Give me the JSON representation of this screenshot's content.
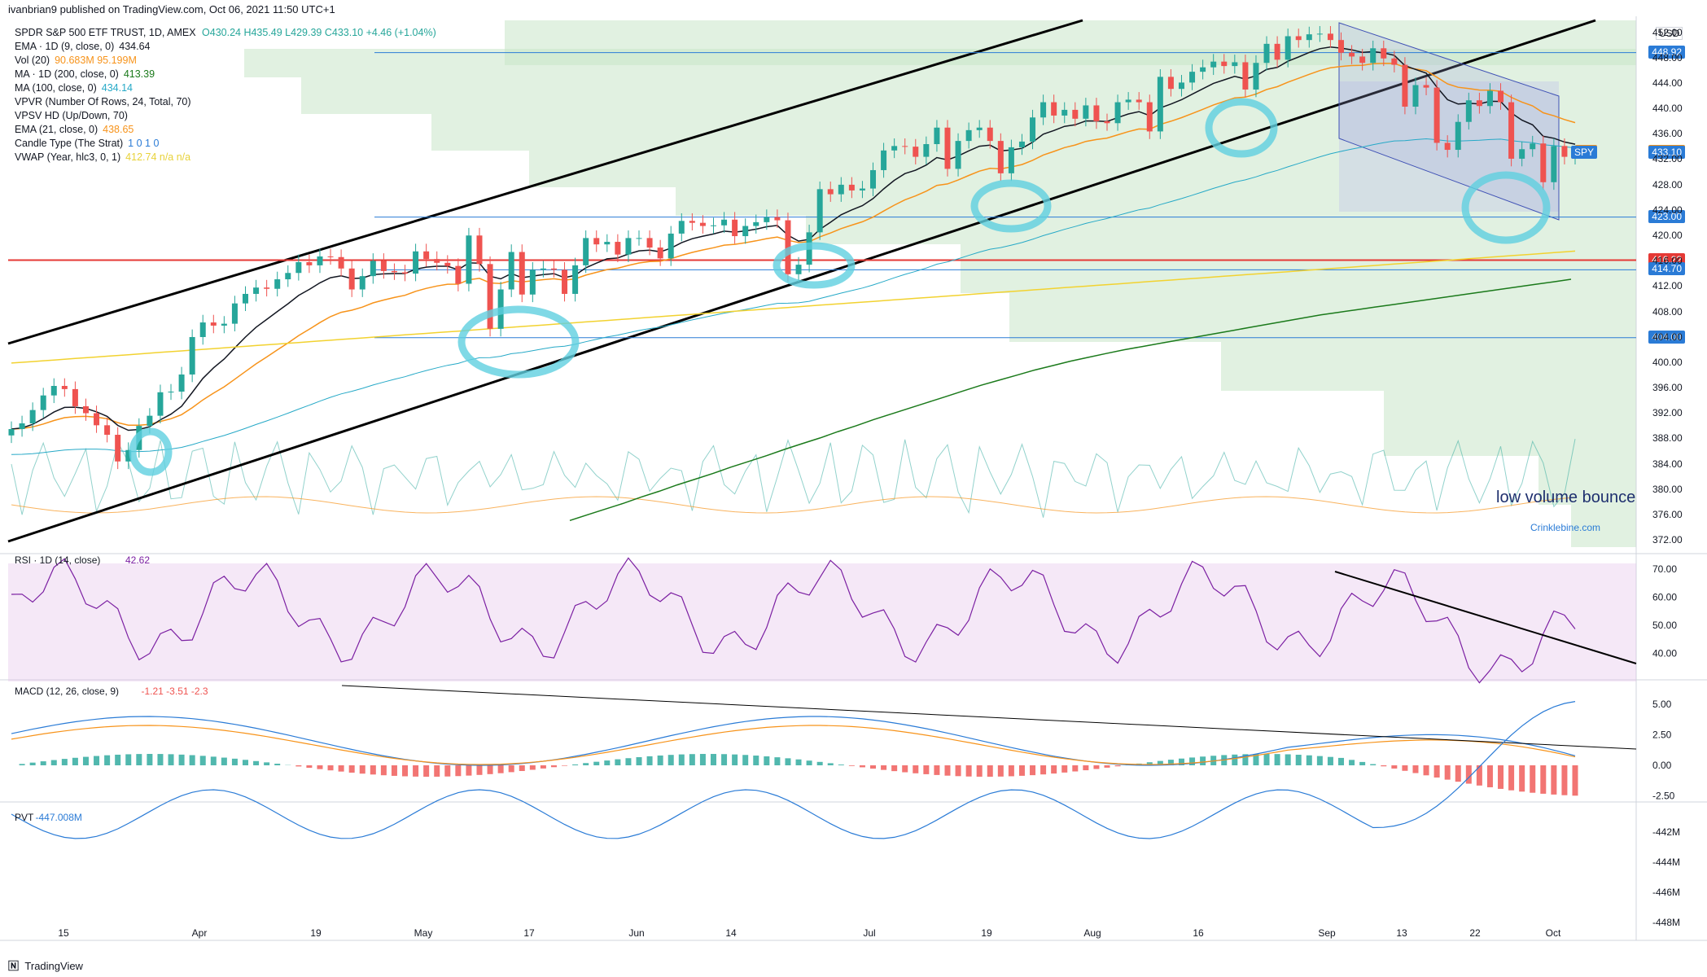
{
  "header": {
    "publisher": "ivanbrian9 published on TradingView.com, Oct 06, 2021 11:50 UTC+1",
    "symbol_line": "SPDR S&P 500 ETF TRUST, 1D, AMEX",
    "ohlc": "O430.24 H435.49 L429.39 C433.10 +4.46 (+1.04%)",
    "currency": "USD"
  },
  "legend": [
    {
      "label": "EMA · 1D (9, close, 0)",
      "value": "434.64",
      "color": "#131722"
    },
    {
      "label": "Vol (20)",
      "value": "90.683M  95.199M",
      "color": "#f7931a"
    },
    {
      "label": "MA · 1D (200, close, 0)",
      "value": "413.39",
      "color": "#1b7a1b"
    },
    {
      "label": "MA (100, close, 0)",
      "value": "434.14",
      "color": "#26a9c7"
    },
    {
      "label": "VPVR (Number Of Rows, 24, Total, 70)",
      "value": "",
      "color": "#131722"
    },
    {
      "label": "VPSV HD (Up/Down, 70)",
      "value": "",
      "color": "#131722"
    },
    {
      "label": "EMA (21, close, 0)",
      "value": "438.65",
      "color": "#f7931a"
    },
    {
      "label": "Candle Type (The Strat)",
      "value": "1 0 1 0",
      "color": "#2a7bd6"
    },
    {
      "label": "VWAP (Year, hlc3, 0, 1)",
      "value": "412.74  n/a  n/a",
      "color": "#e8d23a"
    }
  ],
  "price_labels": [
    {
      "text": "448.92",
      "value": 448.92,
      "color": "#2a7bd6"
    },
    {
      "text": "433.25",
      "value": 433.25,
      "color": "#f7931a",
      "prefix": "Pre"
    },
    {
      "text": "433.10",
      "value": 433.1,
      "color": "#2a7bd6",
      "prefix": "SPY"
    },
    {
      "text": "423.00",
      "value": 423.0,
      "color": "#2a7bd6"
    },
    {
      "text": "416.22",
      "value": 416.22,
      "color": "#e53935"
    },
    {
      "text": "414.70",
      "value": 414.7,
      "color": "#2a7bd6"
    },
    {
      "text": "404.00",
      "value": 404.0,
      "color": "#2a7bd6"
    }
  ],
  "annotations": {
    "low_volume": "low volume bounce",
    "watermark": "Crinklebine.com"
  },
  "footer": "TradingView",
  "chart_data": [
    {
      "type": "line",
      "title": "SPY 1D",
      "x_ticks": [
        "15",
        "Apr",
        "19",
        "May",
        "17",
        "Jun",
        "14",
        "Jul",
        "19",
        "Aug",
        "16",
        "Sep",
        "13",
        "22",
        "Oct"
      ],
      "y_ticks": [
        372,
        376,
        380,
        384,
        388,
        392,
        396,
        400,
        404,
        408,
        412,
        416,
        420,
        424,
        428,
        432,
        436,
        440,
        444,
        448,
        452
      ],
      "ylim": [
        371,
        454
      ],
      "close": [
        389.6,
        390.5,
        392.6,
        394.9,
        396.4,
        395.9,
        393.2,
        392.1,
        390.2,
        388.7,
        384.5,
        386.3,
        390.1,
        391.7,
        395.4,
        395.5,
        398.2,
        404.1,
        406.4,
        405.9,
        406.2,
        409.4,
        410.9,
        411.9,
        411.7,
        413.2,
        414.2,
        415.9,
        415.4,
        416.8,
        416.7,
        414.9,
        411.6,
        413.7,
        416.1,
        414.5,
        414.3,
        414.1,
        417.6,
        416.4,
        415.8,
        415.3,
        412.5,
        420.1,
        415.6,
        405.4,
        411.6,
        417.5,
        410.8,
        414.7,
        414.9,
        414.7,
        410.9,
        415.4,
        419.7,
        418.7,
        419.1,
        417.1,
        419.7,
        419.7,
        418.2,
        416.5,
        420.4,
        422.4,
        422.1,
        421.6,
        421.7,
        422.6,
        420.0,
        421.6,
        422.2,
        423.0,
        422.5,
        414.0,
        415.5,
        420.6,
        427.4,
        426.6,
        428.1,
        427.2,
        427.5,
        430.4,
        433.5,
        434.2,
        434.1,
        432.5,
        434.5,
        437.1,
        430.6,
        435.0,
        436.7,
        437.1,
        435.0,
        429.9,
        434.0,
        434.9,
        438.7,
        441.1,
        439.0,
        439.9,
        438.5,
        440.6,
        438.1,
        437.8,
        441.1,
        441.5,
        441.1,
        436.5,
        445.1,
        443.2,
        444.2,
        445.9,
        446.6,
        447.5,
        446.8,
        447.4,
        443.1,
        447.3,
        450.3,
        447.8,
        451.5,
        450.9,
        451.8,
        451.9,
        450.9,
        448.9,
        448.3,
        447.3,
        449.6,
        448.0,
        447.0,
        440.4,
        443.8,
        443.4,
        434.7,
        433.6,
        438.0,
        441.4,
        440.5,
        442.9,
        441.1,
        432.2,
        433.7,
        434.6,
        428.5,
        434.2,
        432.5,
        433.1
      ],
      "ma200": [
        375.2,
        376.1,
        377.0,
        377.9,
        378.9,
        379.8,
        380.8,
        381.7,
        382.6,
        383.6,
        384.5,
        385.4,
        386.4,
        387.3,
        388.2,
        389.2,
        390.1,
        391.1,
        392.0,
        392.9,
        393.8,
        394.7,
        395.6,
        396.5,
        397.3,
        398.1,
        398.9,
        399.6,
        400.3,
        400.9,
        401.5,
        402.1,
        402.6,
        403.1,
        403.6,
        404.1,
        404.6,
        405.1,
        405.6,
        406.1,
        406.6,
        407.1,
        407.6,
        408.0,
        408.4,
        408.8,
        409.2,
        409.6,
        410.0,
        410.4,
        410.8,
        411.2,
        411.6,
        412.0,
        412.4,
        412.8,
        413.2
      ],
      "rsi": {
        "value": 42.62,
        "ylim": [
          30,
          72
        ],
        "ticks": [
          40,
          50,
          60,
          70
        ]
      },
      "macd": {
        "values": [
          -1.21,
          -3.51,
          -2.3
        ],
        "ticks": [
          -2.5,
          0,
          2.5,
          5
        ]
      },
      "pvt": {
        "value": "-447.008M",
        "ticks": [
          "-448M",
          "-446M",
          "-444M",
          "-442M"
        ]
      }
    }
  ]
}
